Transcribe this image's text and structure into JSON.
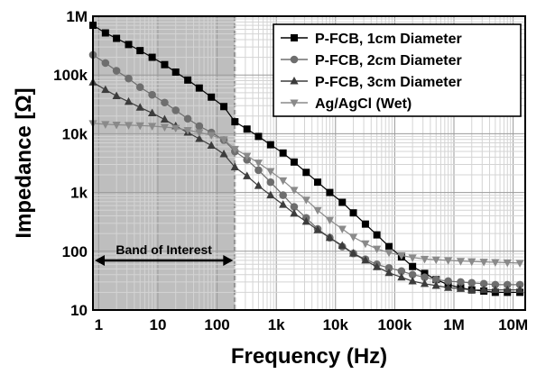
{
  "chart_data": {
    "type": "line",
    "title": "",
    "xlabel": "Frequency (Hz)",
    "ylabel": "Impedance [Ω]",
    "x_scale": "log",
    "y_scale": "log",
    "xlim": [
      0.8,
      16000000
    ],
    "ylim": [
      10,
      1000000
    ],
    "x_ticks": [
      1,
      10,
      100,
      1000,
      10000,
      100000,
      1000000,
      10000000
    ],
    "x_tick_labels": [
      "1",
      "10",
      "100",
      "1k",
      "10k",
      "100k",
      "1M",
      "10M"
    ],
    "y_ticks": [
      10,
      100,
      1000,
      10000,
      100000,
      1000000
    ],
    "y_tick_labels": [
      "10",
      "100",
      "1k",
      "10k",
      "100k",
      "1M"
    ],
    "grid": true,
    "legend_position": "top-right",
    "annotation": {
      "label": "Band of Interest",
      "x_range": [
        0.8,
        200
      ],
      "fill_color": "#bebebe"
    },
    "series": [
      {
        "name": "P-FCB, 1cm Diameter",
        "marker": "square",
        "color": "#000000",
        "points": [
          [
            0.8,
            700000
          ],
          [
            1.3,
            520000
          ],
          [
            2,
            420000
          ],
          [
            3.2,
            330000
          ],
          [
            5,
            260000
          ],
          [
            8,
            200000
          ],
          [
            13,
            150000
          ],
          [
            20,
            112000
          ],
          [
            32,
            82000
          ],
          [
            50,
            60000
          ],
          [
            80,
            42000
          ],
          [
            130,
            29000
          ],
          [
            200,
            16000
          ],
          [
            320,
            12000
          ],
          [
            500,
            9000
          ],
          [
            800,
            6500
          ],
          [
            1300,
            4700
          ],
          [
            2000,
            3300
          ],
          [
            3200,
            2200
          ],
          [
            5000,
            1500
          ],
          [
            8000,
            1000
          ],
          [
            13000,
            680
          ],
          [
            20000,
            450
          ],
          [
            32000,
            290
          ],
          [
            50000,
            190
          ],
          [
            80000,
            120
          ],
          [
            130000,
            80
          ],
          [
            200000,
            55
          ],
          [
            320000,
            42
          ],
          [
            500000,
            33
          ],
          [
            800000,
            27
          ],
          [
            1300000,
            24
          ],
          [
            2000000,
            22
          ],
          [
            3200000,
            21
          ],
          [
            5000000,
            20
          ],
          [
            8000000,
            20
          ],
          [
            13000000,
            20
          ]
        ]
      },
      {
        "name": "P-FCB, 2cm Diameter",
        "marker": "circle",
        "color": "#6e6e6e",
        "points": [
          [
            0.8,
            220000
          ],
          [
            1.3,
            160000
          ],
          [
            2,
            118000
          ],
          [
            3.2,
            87000
          ],
          [
            5,
            62000
          ],
          [
            8,
            46000
          ],
          [
            13,
            34000
          ],
          [
            20,
            25000
          ],
          [
            32,
            18000
          ],
          [
            50,
            13500
          ],
          [
            80,
            10500
          ],
          [
            130,
            7800
          ],
          [
            200,
            5000
          ],
          [
            320,
            3600
          ],
          [
            500,
            2400
          ],
          [
            800,
            1500
          ],
          [
            1300,
            900
          ],
          [
            2000,
            570
          ],
          [
            3200,
            370
          ],
          [
            5000,
            240
          ],
          [
            8000,
            170
          ],
          [
            13000,
            120
          ],
          [
            20000,
            92
          ],
          [
            32000,
            73
          ],
          [
            50000,
            60
          ],
          [
            80000,
            52
          ],
          [
            130000,
            46
          ],
          [
            200000,
            40
          ],
          [
            320000,
            36
          ],
          [
            500000,
            33
          ],
          [
            800000,
            31
          ],
          [
            1300000,
            30
          ],
          [
            2000000,
            29
          ],
          [
            3200000,
            28
          ],
          [
            5000000,
            27
          ],
          [
            8000000,
            27
          ],
          [
            13000000,
            27
          ]
        ]
      },
      {
        "name": "P-FCB, 3cm Diameter",
        "marker": "triangle-up",
        "color": "#3c3c3c",
        "points": [
          [
            0.8,
            75000
          ],
          [
            1.3,
            56000
          ],
          [
            2,
            44000
          ],
          [
            3.2,
            35000
          ],
          [
            5,
            28000
          ],
          [
            8,
            22500
          ],
          [
            13,
            17500
          ],
          [
            20,
            13500
          ],
          [
            32,
            10500
          ],
          [
            50,
            8200
          ],
          [
            80,
            6300
          ],
          [
            130,
            4500
          ],
          [
            200,
            2700
          ],
          [
            320,
            1900
          ],
          [
            500,
            1300
          ],
          [
            800,
            900
          ],
          [
            1300,
            620
          ],
          [
            2000,
            440
          ],
          [
            3200,
            320
          ],
          [
            5000,
            230
          ],
          [
            8000,
            170
          ],
          [
            13000,
            125
          ],
          [
            20000,
            92
          ],
          [
            32000,
            70
          ],
          [
            50000,
            54
          ],
          [
            80000,
            43
          ],
          [
            130000,
            36
          ],
          [
            200000,
            31
          ],
          [
            320000,
            28
          ],
          [
            500000,
            26
          ],
          [
            800000,
            24
          ],
          [
            1300000,
            23
          ],
          [
            2000000,
            22
          ],
          [
            3200000,
            22
          ],
          [
            5000000,
            22
          ],
          [
            8000000,
            22
          ],
          [
            13000000,
            22
          ]
        ]
      },
      {
        "name": "Ag/AgCl (Wet)",
        "marker": "triangle-down",
        "color": "#8a8a8a",
        "points": [
          [
            0.8,
            15000
          ],
          [
            1.3,
            14500
          ],
          [
            2,
            14200
          ],
          [
            3.2,
            14000
          ],
          [
            5,
            13800
          ],
          [
            8,
            13500
          ],
          [
            13,
            13000
          ],
          [
            20,
            12500
          ],
          [
            32,
            11500
          ],
          [
            50,
            10500
          ],
          [
            80,
            9500
          ],
          [
            130,
            8000
          ],
          [
            200,
            5500
          ],
          [
            320,
            4200
          ],
          [
            500,
            3200
          ],
          [
            800,
            2300
          ],
          [
            1300,
            1600
          ],
          [
            2000,
            1100
          ],
          [
            3200,
            750
          ],
          [
            5000,
            500
          ],
          [
            8000,
            340
          ],
          [
            13000,
            240
          ],
          [
            20000,
            175
          ],
          [
            32000,
            135
          ],
          [
            50000,
            110
          ],
          [
            80000,
            95
          ],
          [
            130000,
            85
          ],
          [
            200000,
            78
          ],
          [
            320000,
            74
          ],
          [
            500000,
            72
          ],
          [
            800000,
            70
          ],
          [
            1300000,
            68
          ],
          [
            2000000,
            67
          ],
          [
            3200000,
            66
          ],
          [
            5000000,
            65
          ],
          [
            8000000,
            64
          ],
          [
            13000000,
            63
          ]
        ]
      }
    ]
  }
}
